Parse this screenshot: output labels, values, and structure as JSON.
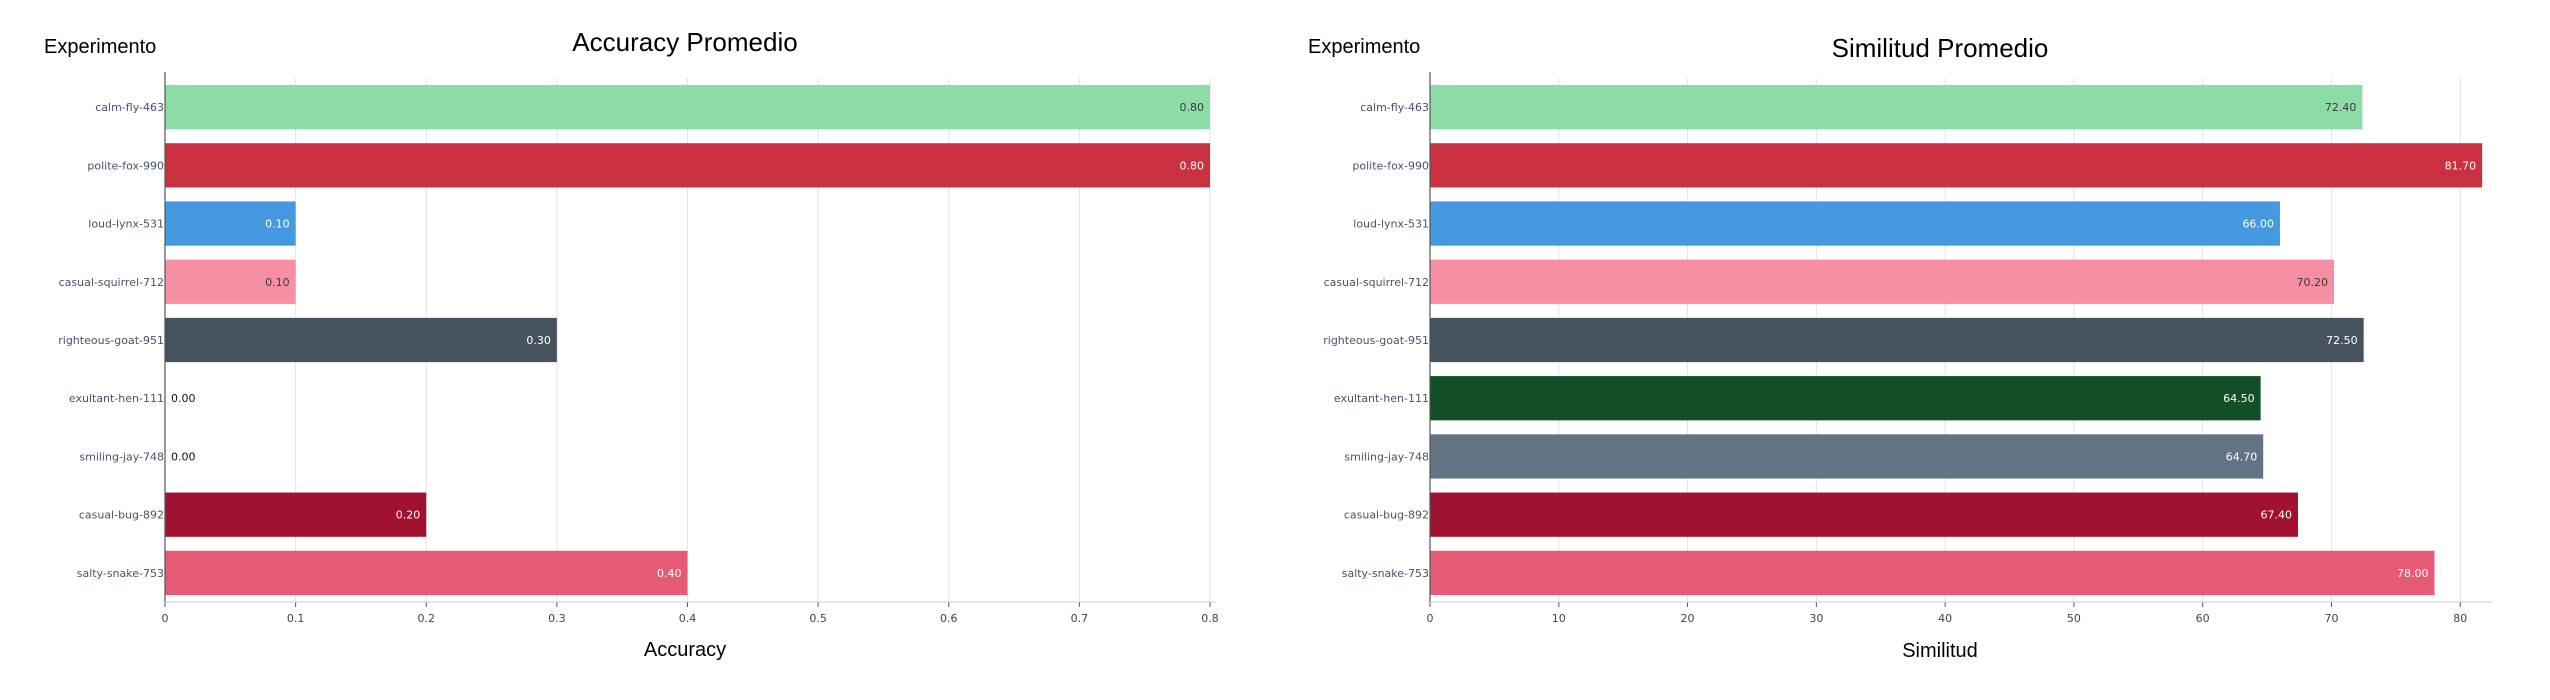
{
  "chart_data": [
    {
      "type": "bar",
      "orientation": "horizontal",
      "title": "Accuracy Promedio",
      "xlabel": "Accuracy",
      "ylabel": "Experimento",
      "xlim": [
        0,
        0.8
      ],
      "xticks": [
        "0",
        "0.1",
        "0.2",
        "0.3",
        "0.4",
        "0.5",
        "0.6",
        "0.7",
        "0.8"
      ],
      "grid": true,
      "categories": [
        "calm-fly-463",
        "polite-fox-990",
        "loud-lynx-531",
        "casual-squirrel-712",
        "righteous-goat-951",
        "exultant-hen-111",
        "smiling-jay-748",
        "casual-bug-892",
        "salty-snake-753"
      ],
      "values": [
        0.8,
        0.8,
        0.1,
        0.1,
        0.3,
        0.0,
        0.0,
        0.2,
        0.4
      ],
      "labels": [
        "0.80",
        "0.80",
        "0.10",
        "0.10",
        "0.30",
        "0.00",
        "0.00",
        "0.20",
        "0.40"
      ],
      "colors": [
        "#8ddca8",
        "#c93141",
        "#4599e0",
        "#f68fa3",
        "#46535f",
        "#115026",
        "#627383",
        "#a0122f",
        "#e55b76"
      ]
    },
    {
      "type": "bar",
      "orientation": "horizontal",
      "title": "Similitud Promedio",
      "xlabel": "Similitud",
      "ylabel": "Experimento",
      "xlim": [
        0,
        82
      ],
      "xticks": [
        "0",
        "10",
        "20",
        "30",
        "40",
        "50",
        "60",
        "70",
        "80"
      ],
      "grid": true,
      "categories": [
        "calm-fly-463",
        "polite-fox-990",
        "loud-lynx-531",
        "casual-squirrel-712",
        "righteous-goat-951",
        "exultant-hen-111",
        "smiling-jay-748",
        "casual-bug-892",
        "salty-snake-753"
      ],
      "values": [
        72.4,
        81.7,
        66.0,
        70.2,
        72.5,
        64.5,
        64.7,
        67.4,
        78.0
      ],
      "labels": [
        "72.40",
        "81.70",
        "66.00",
        "70.20",
        "72.50",
        "64.50",
        "64.70",
        "67.40",
        "78.00"
      ],
      "colors": [
        "#8ddca8",
        "#c93141",
        "#4599e0",
        "#f68fa3",
        "#46535f",
        "#115026",
        "#627383",
        "#a0122f",
        "#e55b76"
      ]
    }
  ]
}
